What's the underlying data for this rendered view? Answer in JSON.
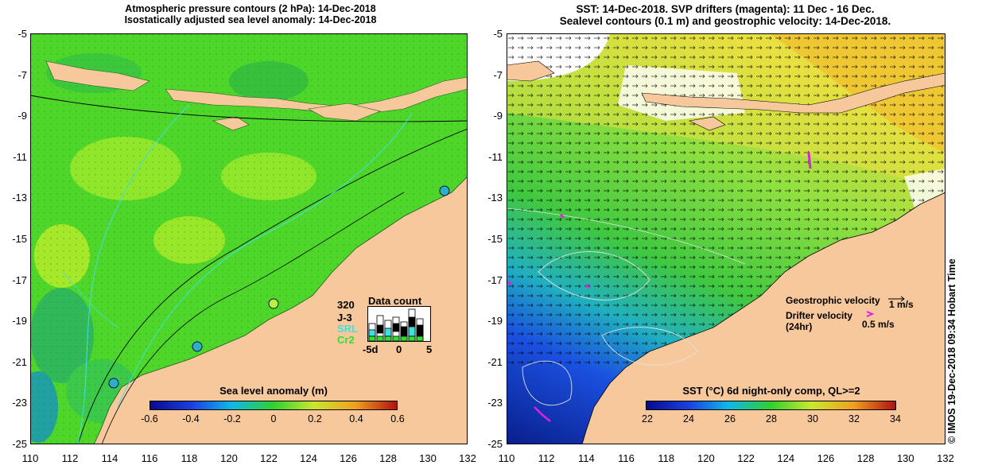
{
  "left_panel": {
    "title_line1": "Atmospheric pressure contours (2 hPa): 14-Dec-2018",
    "title_line2": "Isostatically adjusted sea level anomaly: 14-Dec-2018",
    "colorbar": {
      "label": "Sea level anomaly (m)",
      "ticks": [
        "-0.6",
        "-0.4",
        "-0.2",
        "0",
        "0.2",
        "0.4",
        "0.6"
      ]
    },
    "data_count": {
      "title": "Data count",
      "max": "320",
      "missions": [
        "J-3",
        "SRL",
        "Cr2"
      ],
      "x_ticks": [
        "-5d",
        "0",
        "5"
      ]
    }
  },
  "right_panel": {
    "title_line1": "SST: 14-Dec-2018. SVP drifters (magenta): 11 Dec - 16 Dec.",
    "title_line2": "Sealevel contours (0.1 m) and geostrophic velocity: 14-Dec-2018.",
    "colorbar": {
      "label": "SST (°C) 6d night-only comp, QL>=2",
      "ticks": [
        "22",
        "24",
        "26",
        "28",
        "30",
        "32",
        "34"
      ]
    },
    "legend": {
      "geostrophic_label": "Geostrophic velocity",
      "geostrophic_value": "1 m/s",
      "drifter_label_line1": "Drifter velocity",
      "drifter_label_line2": "(24hr)",
      "drifter_value": "0.5 m/s"
    }
  },
  "axes": {
    "lat_ticks": [
      "-5",
      "-7",
      "-9",
      "-11",
      "-13",
      "-15",
      "-17",
      "-19",
      "-21",
      "-23",
      "-25"
    ],
    "lon_ticks": [
      "110",
      "112",
      "114",
      "116",
      "118",
      "120",
      "122",
      "124",
      "126",
      "128",
      "130",
      "132"
    ]
  },
  "credit": "© IMOS 19-Dec-2018 09:34 Hobart Time",
  "colors": {
    "land": "#f7c89b",
    "ocean_left": "#4ed62a",
    "ocean_right": "#3cc83c",
    "deep_blue": "#0a1e8c",
    "drifter": "#e020e0",
    "contour": "#000000",
    "contour_cyan": "#40e0e0"
  }
}
